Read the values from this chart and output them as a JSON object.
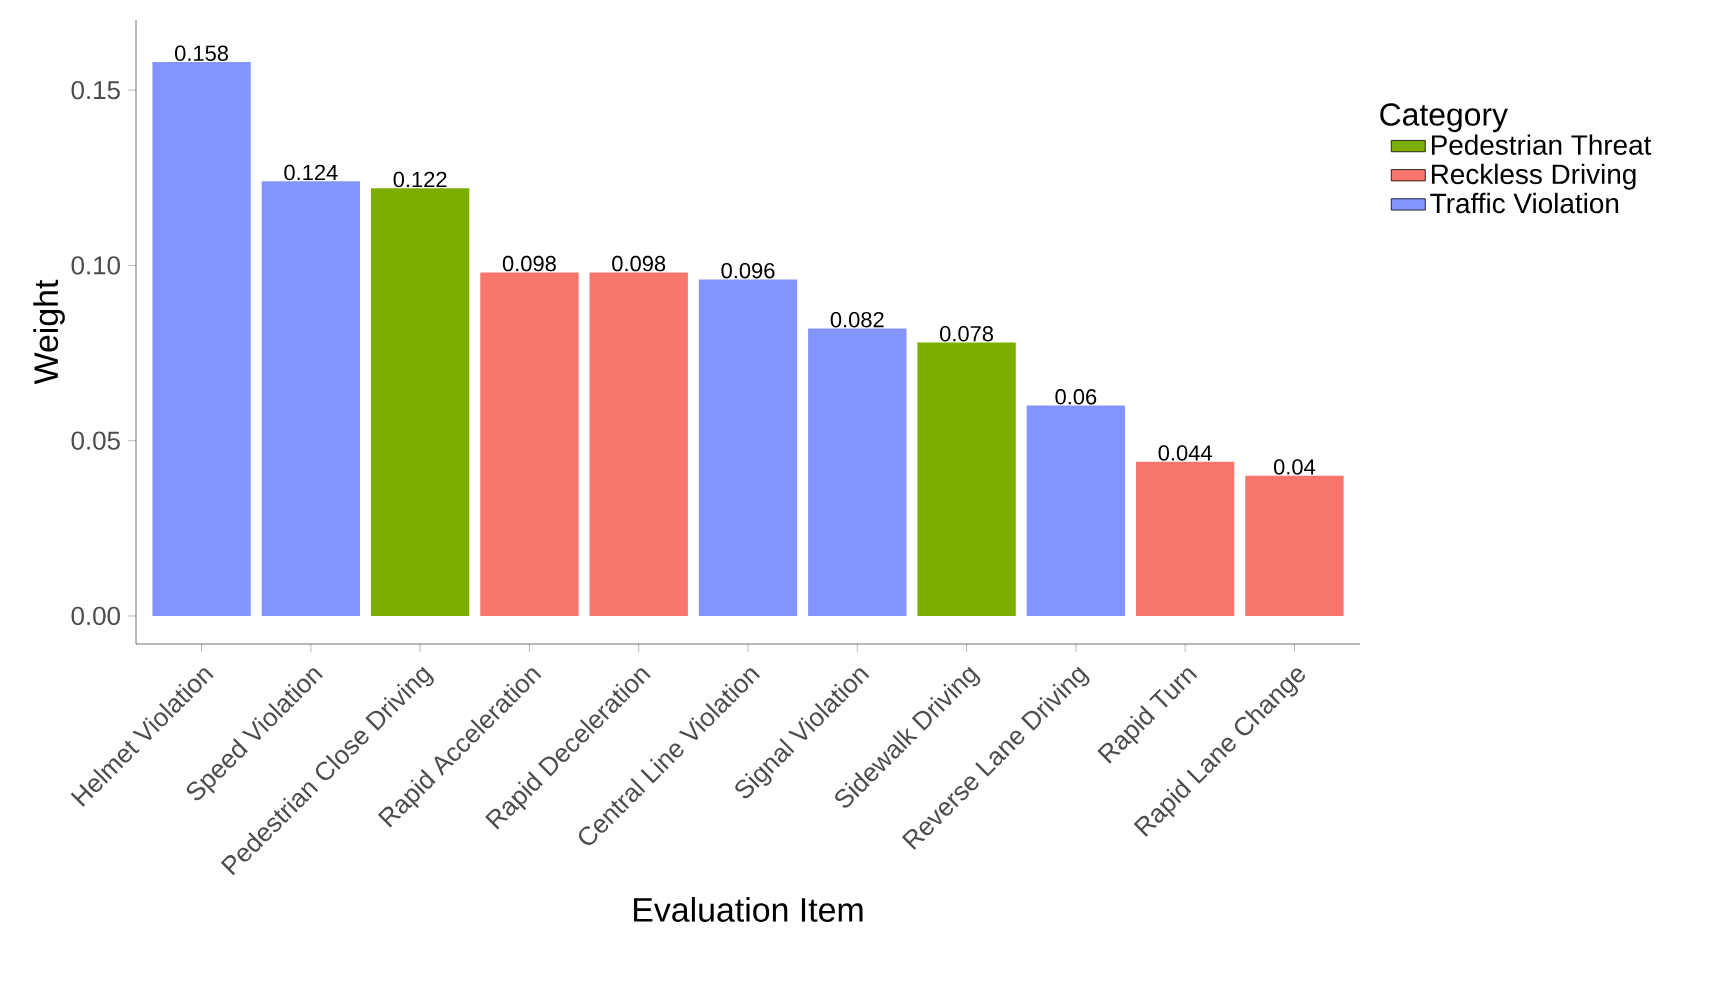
{
  "chart_data": {
    "type": "bar",
    "xlabel": "Evaluation Item",
    "ylabel": "Weight",
    "legend_title": "Category",
    "legend": "right",
    "data_labels": true,
    "categories": [
      "Helmet Violation",
      "Speed Violation",
      "Pedestrian Close Driving",
      "Rapid Acceleration",
      "Rapid Deceleration",
      "Central Line Violation",
      "Signal Violation",
      "Sidewalk Driving",
      "Reverse Lane Driving",
      "Rapid Turn",
      "Rapid Lane Change"
    ],
    "series": [
      {
        "name": "Pedestrian Threat",
        "color": "#7cae00",
        "values": [
          null,
          null,
          0.122,
          null,
          null,
          null,
          null,
          0.078,
          null,
          null,
          null
        ]
      },
      {
        "name": "Reckless Driving",
        "color": "#f8766d",
        "values": [
          null,
          null,
          null,
          0.098,
          0.098,
          null,
          null,
          null,
          null,
          0.044,
          0.04
        ]
      },
      {
        "name": "Traffic Violation",
        "color": "#8494ff",
        "values": [
          0.158,
          0.124,
          null,
          null,
          null,
          0.096,
          0.082,
          null,
          0.06,
          null,
          null
        ]
      }
    ],
    "ylim": [
      -0.008,
      0.17
    ],
    "yticks": [
      {
        "value": 0,
        "label": "0.00"
      },
      {
        "value": 0.05,
        "label": "0.05"
      },
      {
        "value": 0.1,
        "label": "0.10"
      },
      {
        "value": 0.15,
        "label": "0.15"
      }
    ]
  }
}
